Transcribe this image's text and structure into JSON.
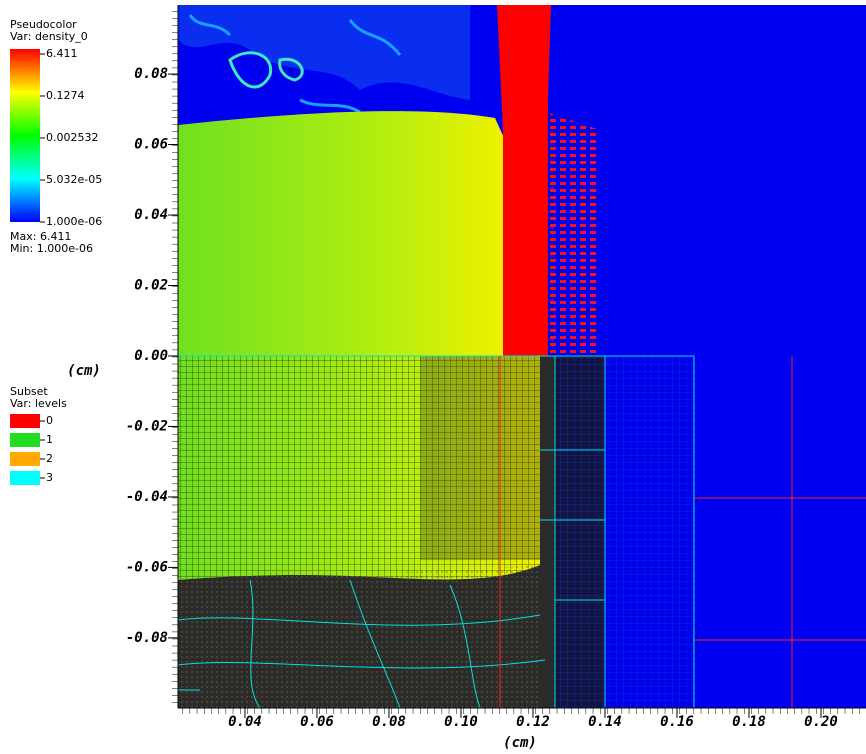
{
  "chart_data": {
    "type": "pseudocolor",
    "xlabel": "(cm)",
    "ylabel": "(cm)",
    "xlim": [
      0.0214,
      0.2125
    ],
    "ylim": [
      -0.0999,
      0.0996
    ],
    "xticks": [
      0.04,
      0.06,
      0.08,
      {
        "value": 0.1,
        "label": "0.10"
      },
      0.12,
      0.14,
      0.16,
      0.18,
      {
        "value": 0.2,
        "label": "0.20"
      }
    ],
    "yticks": [
      0.08,
      0.06,
      0.04,
      0.02,
      {
        "value": 0,
        "label": "0.00"
      },
      -0.02,
      -0.04,
      -0.06,
      -0.08
    ],
    "colorbar": {
      "title": "Pseudocolor",
      "var_label": "Var: density_0",
      "scale": "log",
      "lim": [
        1e-06,
        6.411
      ],
      "ticks": [
        6.411,
        0.1274,
        0.002532,
        {
          "value": 5.032e-05,
          "label": "5.032e-05"
        },
        {
          "value": 1e-06,
          "label": "1.000e-06"
        }
      ],
      "max_label": "Max: 6.411",
      "min_label": "Min: 1.000e-06"
    },
    "subset_legend": {
      "title": "Subset",
      "var_label": "Var: levels",
      "entries": [
        {
          "name": "0",
          "color": "#ff0000"
        },
        {
          "name": "1",
          "color": "#22dd22"
        },
        {
          "name": "2",
          "color": "#ffaa00"
        },
        {
          "name": "3",
          "color": "#00ffff"
        }
      ]
    }
  }
}
